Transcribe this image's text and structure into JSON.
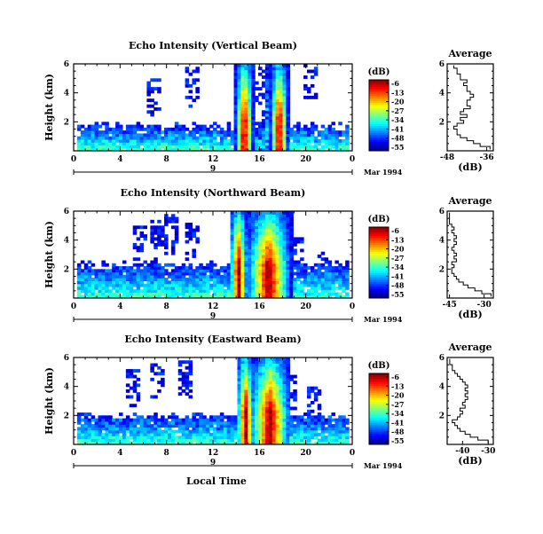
{
  "figure": {
    "xlabel": "Local Time",
    "date_label": "Mar 1994",
    "day_label": "9"
  },
  "chart_data": [
    {
      "type": "heatmap",
      "title": "Echo Intensity (Vertical Beam)",
      "ylabel": "Height (km)",
      "xlabel": "",
      "xlim": [
        0,
        24
      ],
      "ylim": [
        0,
        6
      ],
      "xticks": [
        "0",
        "4",
        "8",
        "12",
        "16",
        "20",
        "0"
      ],
      "yticks": [
        "2",
        "4",
        "6"
      ],
      "colorbar": {
        "label": "(dB)",
        "ticks": [
          "-6",
          "-13",
          "-20",
          "-27",
          "-34",
          "-41",
          "-48",
          "-55"
        ],
        "range": [
          -55,
          -6
        ]
      },
      "features": {
        "low_layer_top_km": 1.6,
        "low_layer_start_h": 0.3,
        "low_layer_end_h": 23.7,
        "strong_columns": [
          {
            "center_h": 14.7,
            "width_h": 0.45,
            "peak_db": -6
          },
          {
            "center_h": 17.7,
            "width_h": 0.45,
            "peak_db": -6
          }
        ],
        "column_top_km": 6,
        "gap": {
          "from_h": 15.2,
          "to_h": 16.3
        },
        "sparse_patches": [
          {
            "x_h": 6.8,
            "y_km": 4.6
          },
          {
            "x_h": 10.0,
            "y_km": 5.1
          },
          {
            "x_h": 20.3,
            "y_km": 5.8
          }
        ]
      },
      "average": {
        "title": "Average",
        "xlabel": "(dB)",
        "xticks": [
          "-48",
          "-36"
        ],
        "xlim": [
          -48,
          -34
        ],
        "ylim": [
          0,
          6
        ],
        "yticks": [
          "2",
          "4",
          "6"
        ],
        "height_km": [
          0.2,
          0.4,
          0.6,
          0.8,
          1.0,
          1.2,
          1.4,
          1.6,
          1.8,
          2.0,
          2.2,
          2.4,
          2.6,
          2.8,
          3.0,
          3.2,
          3.4,
          3.6,
          3.8,
          4.0,
          4.2,
          4.4,
          4.6,
          4.8,
          5.0,
          5.2,
          5.4,
          5.6,
          5.8
        ],
        "db": [
          -35,
          -38,
          -40,
          -42,
          -44,
          -45,
          -45,
          -46,
          -45,
          -43,
          -44,
          -42,
          -44,
          -43,
          -41,
          -42,
          -42,
          -41,
          -40,
          -41,
          -42,
          -42,
          -43,
          -42,
          -44,
          -44,
          -45,
          -45,
          -46
        ]
      }
    },
    {
      "type": "heatmap",
      "title": "Echo Intensity (Northward Beam)",
      "ylabel": "Height (km)",
      "xlabel": "",
      "xlim": [
        0,
        24
      ],
      "ylim": [
        0,
        6
      ],
      "xticks": [
        "0",
        "4",
        "8",
        "12",
        "16",
        "20",
        "0"
      ],
      "yticks": [
        "2",
        "4",
        "6"
      ],
      "colorbar": {
        "label": "(dB)",
        "ticks": [
          "-6",
          "-13",
          "-20",
          "-27",
          "-34",
          "-41",
          "-48",
          "-55"
        ],
        "range": [
          -55,
          -6
        ]
      },
      "features": {
        "low_layer_top_km": 2.2,
        "low_layer_start_h": 0.3,
        "low_layer_end_h": 23.7,
        "strong_columns": [
          {
            "center_h": 14.2,
            "width_h": 0.45,
            "peak_db": -6
          },
          {
            "center_h": 16.8,
            "width_h": 1.1,
            "peak_db": -6
          }
        ],
        "column_top_km": 6,
        "gap": {
          "from_h": 15.4,
          "to_h": 15.9
        },
        "sparse_patches": [
          {
            "x_h": 5.5,
            "y_km": 4.4
          },
          {
            "x_h": 7.0,
            "y_km": 4.8
          },
          {
            "x_h": 8.2,
            "y_km": 5.2
          },
          {
            "x_h": 10.2,
            "y_km": 4.6
          },
          {
            "x_h": 19.0,
            "y_km": 3.6
          },
          {
            "x_h": 21.5,
            "y_km": 2.6
          }
        ]
      },
      "average": {
        "title": "Average",
        "xlabel": "(dB)",
        "xticks": [
          "-45",
          "-30"
        ],
        "xlim": [
          -46,
          -26
        ],
        "ylim": [
          0,
          6
        ],
        "yticks": [
          "2",
          "4",
          "6"
        ],
        "height_km": [
          0.2,
          0.4,
          0.6,
          0.8,
          1.0,
          1.2,
          1.4,
          1.6,
          1.8,
          2.0,
          2.2,
          2.4,
          2.6,
          2.8,
          3.0,
          3.2,
          3.4,
          3.6,
          3.8,
          4.0,
          4.2,
          4.4,
          4.6,
          4.8,
          5.0,
          5.2,
          5.4,
          5.6,
          5.8
        ],
        "db": [
          -27,
          -31,
          -34,
          -37,
          -39,
          -41,
          -42,
          -43,
          -44,
          -44,
          -43,
          -44,
          -42,
          -43,
          -42,
          -43,
          -44,
          -43,
          -42,
          -43,
          -42,
          -43,
          -44,
          -43,
          -44,
          -45,
          -45,
          -45,
          -45
        ]
      }
    },
    {
      "type": "heatmap",
      "title": "Echo Intensity (Eastward Beam)",
      "ylabel": "Height (km)",
      "xlabel": "Local Time",
      "xlim": [
        0,
        24
      ],
      "ylim": [
        0,
        6
      ],
      "xticks": [
        "0",
        "4",
        "8",
        "12",
        "16",
        "20",
        "0"
      ],
      "yticks": [
        "2",
        "4",
        "6"
      ],
      "colorbar": {
        "label": "(dB)",
        "ticks": [
          "-6",
          "-13",
          "-20",
          "-27",
          "-34",
          "-41",
          "-48",
          "-55"
        ],
        "range": [
          -55,
          -6
        ]
      },
      "features": {
        "low_layer_top_km": 1.9,
        "low_layer_start_h": 0.3,
        "low_layer_end_h": 23.7,
        "strong_columns": [
          {
            "center_h": 14.8,
            "width_h": 0.45,
            "peak_db": -6
          },
          {
            "center_h": 16.9,
            "width_h": 1.0,
            "peak_db": -6
          }
        ],
        "column_top_km": 6,
        "gap": {
          "from_h": 15.3,
          "to_h": 15.9
        },
        "sparse_patches": [
          {
            "x_h": 5.0,
            "y_km": 4.6
          },
          {
            "x_h": 7.0,
            "y_km": 5.0
          },
          {
            "x_h": 9.5,
            "y_km": 5.2
          },
          {
            "x_h": 18.5,
            "y_km": 4.2
          },
          {
            "x_h": 20.5,
            "y_km": 3.4
          }
        ]
      },
      "average": {
        "title": "Average",
        "xlabel": "(dB)",
        "xticks": [
          "-40",
          "-30"
        ],
        "xlim": [
          -46,
          -28
        ],
        "ylim": [
          0,
          6
        ],
        "yticks": [
          "2",
          "4",
          "6"
        ],
        "height_km": [
          0.2,
          0.4,
          0.6,
          0.8,
          1.0,
          1.2,
          1.4,
          1.6,
          1.8,
          2.0,
          2.2,
          2.4,
          2.6,
          2.8,
          3.0,
          3.2,
          3.4,
          3.6,
          3.8,
          4.0,
          4.2,
          4.4,
          4.6,
          4.8,
          5.0,
          5.2,
          5.4,
          5.6,
          5.8
        ],
        "db": [
          -30,
          -34,
          -37,
          -39,
          -41,
          -42,
          -43,
          -44,
          -42,
          -41,
          -40,
          -41,
          -39,
          -40,
          -39,
          -38,
          -39,
          -38,
          -39,
          -38,
          -39,
          -40,
          -41,
          -42,
          -43,
          -44,
          -44,
          -45,
          -45
        ]
      }
    }
  ]
}
